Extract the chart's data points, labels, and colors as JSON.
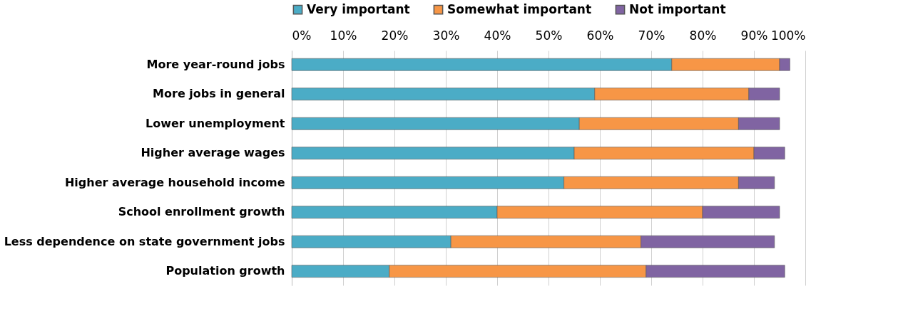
{
  "chart_data": {
    "type": "bar",
    "orientation": "horizontal",
    "stacked": true,
    "categories": [
      "More year-round jobs",
      "More jobs in general",
      "Lower unemployment",
      "Higher average wages",
      "Higher average household income",
      "School enrollment growth",
      "Less dependence on state government jobs",
      "Population growth"
    ],
    "series": [
      {
        "name": "Very important",
        "color": "#4bacc6",
        "values": [
          74,
          59,
          56,
          55,
          53,
          40,
          31,
          19
        ]
      },
      {
        "name": "Somewhat important",
        "color": "#f79646",
        "values": [
          21,
          30,
          31,
          35,
          34,
          40,
          37,
          50
        ]
      },
      {
        "name": "Not important",
        "color": "#8064a2",
        "values": [
          2,
          6,
          8,
          6,
          7,
          15,
          26,
          27
        ]
      }
    ],
    "xlim": [
      0,
      100
    ],
    "xticks": [
      {
        "value": 0,
        "label": "0%"
      },
      {
        "value": 10,
        "label": "10%"
      },
      {
        "value": 20,
        "label": "20%"
      },
      {
        "value": 30,
        "label": "30%"
      },
      {
        "value": 40,
        "label": "40%"
      },
      {
        "value": 50,
        "label": "50%"
      },
      {
        "value": 60,
        "label": "60%"
      },
      {
        "value": 70,
        "label": "70%"
      },
      {
        "value": 80,
        "label": "80%"
      },
      {
        "value": 90,
        "label": "90%"
      },
      {
        "value": 100,
        "label": "100%"
      }
    ],
    "grid": "x",
    "legend": "top"
  }
}
